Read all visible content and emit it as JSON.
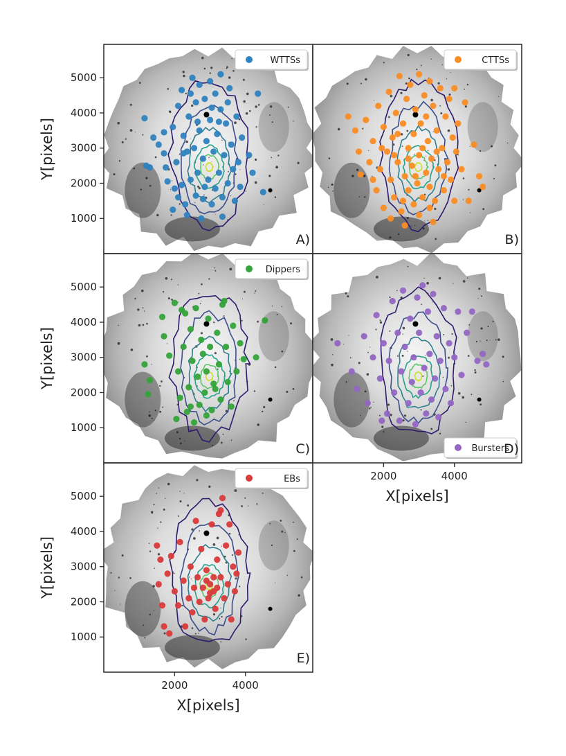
{
  "chart_data": {
    "type": "scatter",
    "title": "",
    "xlabel": "X[pixels]",
    "ylabel": "Y[pixels]",
    "xlim": [
      0,
      5900
    ],
    "ylim": [
      0,
      5950
    ],
    "x_ticks": [
      2000,
      4000
    ],
    "y_ticks": [
      1000,
      2000,
      3000,
      4000,
      5000
    ],
    "contour_center": [
      2980,
      2460
    ],
    "contour_colors": [
      "#2e1a6e",
      "#3b4f8c",
      "#2f7d8e",
      "#27a08a",
      "#5ec66b",
      "#c9e02a"
    ],
    "panels": [
      {
        "id": "A",
        "label": "A)",
        "legend": "WTTSs",
        "legend_position": "top-right",
        "color": "#2f82bf",
        "points": [
          [
            1150,
            3850
          ],
          [
            1300,
            2450
          ],
          [
            1200,
            2500
          ],
          [
            1400,
            3300
          ],
          [
            1550,
            3100
          ],
          [
            1700,
            3450
          ],
          [
            1700,
            2850
          ],
          [
            1750,
            2450
          ],
          [
            1800,
            2050
          ],
          [
            1950,
            3600
          ],
          [
            2000,
            1850
          ],
          [
            2050,
            2600
          ],
          [
            2100,
            1600
          ],
          [
            2200,
            4650
          ],
          [
            2250,
            3350
          ],
          [
            2300,
            1400
          ],
          [
            2350,
            2900
          ],
          [
            2400,
            3900
          ],
          [
            2450,
            2100
          ],
          [
            2500,
            5000
          ],
          [
            2550,
            3000
          ],
          [
            2600,
            4300
          ],
          [
            2600,
            1650
          ],
          [
            2650,
            2300
          ],
          [
            2700,
            4800
          ],
          [
            2700,
            3500
          ],
          [
            2750,
            1000
          ],
          [
            2800,
            2700
          ],
          [
            2850,
            4400
          ],
          [
            2850,
            1900
          ],
          [
            2900,
            3200
          ],
          [
            2950,
            2100
          ],
          [
            3000,
            4900
          ],
          [
            3000,
            3800
          ],
          [
            3050,
            1400
          ],
          [
            3100,
            2900
          ],
          [
            3150,
            4550
          ],
          [
            3150,
            1850
          ],
          [
            3200,
            3400
          ],
          [
            3250,
            2300
          ],
          [
            3300,
            5100
          ],
          [
            3300,
            4100
          ],
          [
            3350,
            1600
          ],
          [
            3400,
            2800
          ],
          [
            3450,
            3700
          ],
          [
            3500,
            2000
          ],
          [
            3550,
            4700
          ],
          [
            3600,
            3100
          ],
          [
            3650,
            2400
          ],
          [
            3700,
            1500
          ],
          [
            3750,
            3900
          ],
          [
            3800,
            2600
          ],
          [
            3850,
            1900
          ],
          [
            3900,
            3300
          ],
          [
            4100,
            2800
          ],
          [
            4200,
            2300
          ],
          [
            4350,
            4550
          ],
          [
            4500,
            1750
          ],
          [
            2100,
            4200
          ],
          [
            2350,
            1100
          ],
          [
            2450,
            4550
          ],
          [
            3050,
            4150
          ],
          [
            3350,
            1050
          ],
          [
            2250,
            2850
          ],
          [
            3500,
            4300
          ],
          [
            2800,
            1550
          ],
          [
            1950,
            1250
          ],
          [
            2200,
            1950
          ],
          [
            3250,
            3750
          ],
          [
            2650,
            3750
          ]
        ]
      },
      {
        "id": "B",
        "label": "B)",
        "legend": "CTTSs",
        "legend_position": "top-right",
        "color": "#fa8c24",
        "points": [
          [
            1000,
            3900
          ],
          [
            1200,
            3500
          ],
          [
            1300,
            2900
          ],
          [
            1350,
            2250
          ],
          [
            1500,
            3800
          ],
          [
            1600,
            2600
          ],
          [
            1700,
            3200
          ],
          [
            1800,
            1800
          ],
          [
            1850,
            4200
          ],
          [
            1900,
            2400
          ],
          [
            2000,
            3600
          ],
          [
            2000,
            1300
          ],
          [
            2100,
            2900
          ],
          [
            2150,
            4600
          ],
          [
            2200,
            2100
          ],
          [
            2250,
            3300
          ],
          [
            2300,
            1600
          ],
          [
            2350,
            4000
          ],
          [
            2400,
            2600
          ],
          [
            2450,
            5050
          ],
          [
            2500,
            1200
          ],
          [
            2550,
            3700
          ],
          [
            2600,
            2200
          ],
          [
            2650,
            4400
          ],
          [
            2700,
            3000
          ],
          [
            2700,
            1800
          ],
          [
            2750,
            4800
          ],
          [
            2800,
            2500
          ],
          [
            2850,
            3400
          ],
          [
            2850,
            1400
          ],
          [
            2900,
            4100
          ],
          [
            2950,
            2000
          ],
          [
            3000,
            5100
          ],
          [
            3000,
            2800
          ],
          [
            3050,
            3700
          ],
          [
            3100,
            1600
          ],
          [
            3150,
            4500
          ],
          [
            3200,
            2300
          ],
          [
            3250,
            3200
          ],
          [
            3300,
            4900
          ],
          [
            3300,
            1900
          ],
          [
            3350,
            2700
          ],
          [
            3400,
            4200
          ],
          [
            3450,
            1500
          ],
          [
            3500,
            3500
          ],
          [
            3550,
            2400
          ],
          [
            3600,
            4700
          ],
          [
            3650,
            3000
          ],
          [
            3700,
            1800
          ],
          [
            3750,
            3900
          ],
          [
            3800,
            2600
          ],
          [
            3850,
            4400
          ],
          [
            3900,
            2100
          ],
          [
            3950,
            3300
          ],
          [
            4000,
            1500
          ],
          [
            4050,
            2900
          ],
          [
            4100,
            3700
          ],
          [
            4200,
            2400
          ],
          [
            4300,
            4300
          ],
          [
            4400,
            1500
          ],
          [
            4550,
            3100
          ],
          [
            4700,
            2200
          ],
          [
            4800,
            1900
          ],
          [
            2200,
            1000
          ],
          [
            2600,
            800
          ],
          [
            3400,
            900
          ],
          [
            1700,
            2100
          ],
          [
            3000,
            1100
          ],
          [
            4000,
            4700
          ],
          [
            2400,
            3400
          ],
          [
            3200,
            3900
          ],
          [
            2700,
            2700
          ],
          [
            3500,
            2900
          ],
          [
            2900,
            2200
          ],
          [
            3100,
            3000
          ],
          [
            2300,
            2800
          ],
          [
            3700,
            2200
          ],
          [
            1950,
            3000
          ],
          [
            3300,
            1300
          ],
          [
            2550,
            1500
          ]
        ]
      },
      {
        "id": "C",
        "label": "C)",
        "legend": "Dippers",
        "legend_position": "top-right",
        "color": "#34a33a",
        "points": [
          [
            1150,
            2800
          ],
          [
            1300,
            2350
          ],
          [
            1250,
            1950
          ],
          [
            1650,
            4150
          ],
          [
            1700,
            3600
          ],
          [
            1850,
            3050
          ],
          [
            2000,
            4550
          ],
          [
            2050,
            1250
          ],
          [
            2100,
            2600
          ],
          [
            2150,
            1850
          ],
          [
            2250,
            3300
          ],
          [
            2300,
            4250
          ],
          [
            2350,
            1450
          ],
          [
            2400,
            2150
          ],
          [
            2450,
            3800
          ],
          [
            2500,
            2900
          ],
          [
            2550,
            1150
          ],
          [
            2600,
            4400
          ],
          [
            2650,
            2450
          ],
          [
            2700,
            1650
          ],
          [
            2750,
            3500
          ],
          [
            2800,
            3100
          ],
          [
            2850,
            2000
          ],
          [
            2900,
            2600
          ],
          [
            2950,
            4100
          ],
          [
            3000,
            3300
          ],
          [
            3050,
            1500
          ],
          [
            3100,
            2250
          ],
          [
            3200,
            3700
          ],
          [
            3250,
            2800
          ],
          [
            3300,
            1800
          ],
          [
            3350,
            4500
          ],
          [
            3450,
            3300
          ],
          [
            3500,
            2300
          ],
          [
            3600,
            1600
          ],
          [
            3650,
            3900
          ],
          [
            3750,
            2600
          ],
          [
            3850,
            3400
          ],
          [
            3950,
            2950
          ],
          [
            4550,
            4050
          ],
          [
            4300,
            3000
          ],
          [
            3400,
            4600
          ],
          [
            2200,
            4350
          ],
          [
            2900,
            1350
          ],
          [
            3150,
            2100
          ],
          [
            2450,
            1600
          ]
        ]
      },
      {
        "id": "D",
        "label": "D)",
        "legend": "Bursters",
        "legend_position": "bottom-right",
        "color": "#9466c4",
        "points": [
          [
            700,
            3400
          ],
          [
            1100,
            2600
          ],
          [
            1250,
            2100
          ],
          [
            1450,
            3600
          ],
          [
            1550,
            1700
          ],
          [
            1700,
            3000
          ],
          [
            1800,
            4200
          ],
          [
            1900,
            2400
          ],
          [
            2000,
            3400
          ],
          [
            2100,
            1400
          ],
          [
            2150,
            2900
          ],
          [
            2250,
            4600
          ],
          [
            2300,
            2000
          ],
          [
            2400,
            3700
          ],
          [
            2450,
            1200
          ],
          [
            2500,
            2600
          ],
          [
            2550,
            4900
          ],
          [
            2600,
            3300
          ],
          [
            2700,
            1700
          ],
          [
            2750,
            4100
          ],
          [
            2800,
            2300
          ],
          [
            2850,
            3000
          ],
          [
            2900,
            1100
          ],
          [
            2950,
            4700
          ],
          [
            3000,
            3700
          ],
          [
            3050,
            2000
          ],
          [
            3100,
            5050
          ],
          [
            3150,
            2700
          ],
          [
            3200,
            1400
          ],
          [
            3250,
            4300
          ],
          [
            3300,
            3100
          ],
          [
            3350,
            1800
          ],
          [
            3400,
            4800
          ],
          [
            3450,
            2400
          ],
          [
            3500,
            3600
          ],
          [
            3550,
            1300
          ],
          [
            3600,
            2900
          ],
          [
            3700,
            4400
          ],
          [
            3750,
            2100
          ],
          [
            3850,
            3400
          ],
          [
            3900,
            1700
          ],
          [
            4000,
            3000
          ],
          [
            4100,
            4300
          ],
          [
            4200,
            2500
          ],
          [
            4350,
            3700
          ],
          [
            4500,
            4300
          ],
          [
            4650,
            2900
          ],
          [
            4800,
            3100
          ],
          [
            4900,
            2800
          ],
          [
            1950,
            1200
          ]
        ]
      },
      {
        "id": "E",
        "label": "E)",
        "legend": "EBs",
        "legend_position": "top-right",
        "color": "#d93a3a",
        "points": [
          [
            1500,
            3600
          ],
          [
            1550,
            2500
          ],
          [
            1600,
            3200
          ],
          [
            1650,
            1900
          ],
          [
            1700,
            1300
          ],
          [
            1800,
            2800
          ],
          [
            1850,
            1100
          ],
          [
            1900,
            3300
          ],
          [
            2000,
            2300
          ],
          [
            2100,
            1900
          ],
          [
            2150,
            3700
          ],
          [
            2250,
            2600
          ],
          [
            2300,
            1300
          ],
          [
            2400,
            2100
          ],
          [
            2450,
            3000
          ],
          [
            2500,
            1700
          ],
          [
            2550,
            2400
          ],
          [
            2600,
            4300
          ],
          [
            2650,
            2700
          ],
          [
            2700,
            2000
          ],
          [
            2750,
            3500
          ],
          [
            2800,
            2400
          ],
          [
            2850,
            1500
          ],
          [
            2900,
            2900
          ],
          [
            2950,
            2100
          ],
          [
            3000,
            2500
          ],
          [
            3050,
            4200
          ],
          [
            3100,
            2300
          ],
          [
            3150,
            1800
          ],
          [
            3200,
            3200
          ],
          [
            3250,
            4500
          ],
          [
            3300,
            2700
          ],
          [
            3350,
            4950
          ],
          [
            3400,
            2100
          ],
          [
            3450,
            3600
          ],
          [
            3500,
            2500
          ],
          [
            3550,
            4200
          ],
          [
            3600,
            1500
          ],
          [
            3650,
            3000
          ],
          [
            3700,
            2300
          ],
          [
            3750,
            2800
          ],
          [
            3800,
            3400
          ],
          [
            3300,
            4600
          ],
          [
            2900,
            2600
          ],
          [
            3100,
            2700
          ],
          [
            3200,
            2400
          ],
          [
            3000,
            2250
          ]
        ]
      }
    ]
  }
}
